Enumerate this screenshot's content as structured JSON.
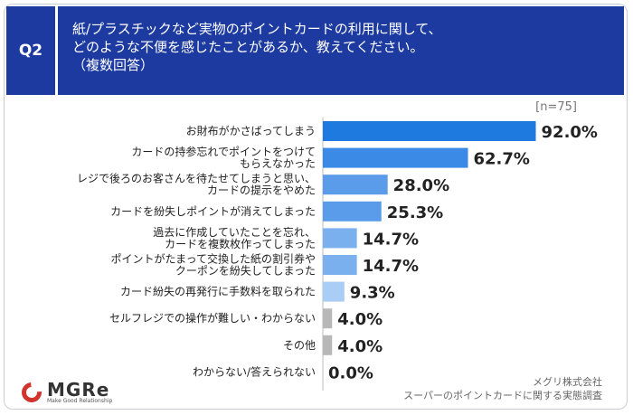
{
  "header": {
    "badge": "Q2",
    "question_lines": [
      "紙/プラスチックなど実物のポイントカードの利用に関して、",
      "どのような不便を感じたことがあるか、教えてください。",
      "（複数回答）"
    ]
  },
  "sample_label": "[n=75]",
  "chart_data": {
    "type": "bar",
    "orientation": "horizontal",
    "unit": "%",
    "categories": [
      [
        "お財布がかさばってしまう"
      ],
      [
        "カードの持参忘れでポイントをつけて",
        "もらえなかった"
      ],
      [
        "レジで後ろのお客さんを待たせてしまうと思い、",
        "カードの提示をやめた"
      ],
      [
        "カードを紛失しポイントが消えてしまった"
      ],
      [
        "過去に作成していたことを忘れ、",
        "カードを複数枚作ってしまった"
      ],
      [
        "ポイントがたまって交換した紙の割引券や",
        "クーポンを紛失してしまった"
      ],
      [
        "カード紛失の再発行に手数料を取られた"
      ],
      [
        "セルフレジでの操作が難しい・わからない"
      ],
      [
        "その他"
      ],
      [
        "わからない/答えられない"
      ]
    ],
    "values": [
      92.0,
      62.7,
      28.0,
      25.3,
      14.7,
      14.7,
      9.3,
      4.0,
      4.0,
      0.0
    ],
    "value_labels": [
      "92.0%",
      "62.7%",
      "28.0%",
      "25.3%",
      "14.7%",
      "14.7%",
      "9.3%",
      "4.0%",
      "4.0%",
      "0.0%"
    ],
    "colors": [
      "#1f7ae0",
      "#3a8ae6",
      "#5a9cea",
      "#5a9cea",
      "#7ab0ee",
      "#7ab0ee",
      "#a9cdf5",
      "#b8b8b8",
      "#b8b8b8",
      "#b8b8b8"
    ],
    "xlim": [
      0,
      100
    ]
  },
  "logo": {
    "name": "MGRe",
    "tagline": "Make Good Relationship"
  },
  "source": [
    "メグリ株式会社",
    "スーパーのポイントカードに関する実態調査"
  ]
}
